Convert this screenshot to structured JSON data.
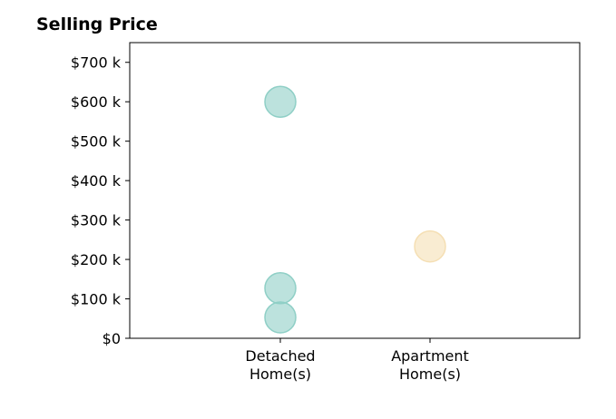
{
  "chart_data": {
    "type": "scatter",
    "title": "Selling Price",
    "xlabel": "",
    "ylabel": "",
    "categories": [
      [
        "Detached",
        "Home(s)"
      ],
      [
        "Apartment",
        "Home(s)"
      ]
    ],
    "y_ticks": [
      0,
      100000,
      200000,
      300000,
      400000,
      500000,
      600000,
      700000
    ],
    "y_tick_labels": [
      "$0",
      "$100 k",
      "$200 k",
      "$300 k",
      "$400 k",
      "$500 k",
      "$600 k",
      "$700 k"
    ],
    "ylim": [
      0,
      750000
    ],
    "grid": false,
    "legend": "none",
    "points": [
      {
        "category": "Detached Home(s)",
        "y": 600000,
        "color": "#8fcfc6"
      },
      {
        "category": "Detached Home(s)",
        "y": 127000,
        "color": "#8fcfc6"
      },
      {
        "category": "Detached Home(s)",
        "y": 53000,
        "color": "#8fcfc6"
      },
      {
        "category": "Apartment Home(s)",
        "y": 233000,
        "color": "#f5dfb4"
      }
    ]
  }
}
